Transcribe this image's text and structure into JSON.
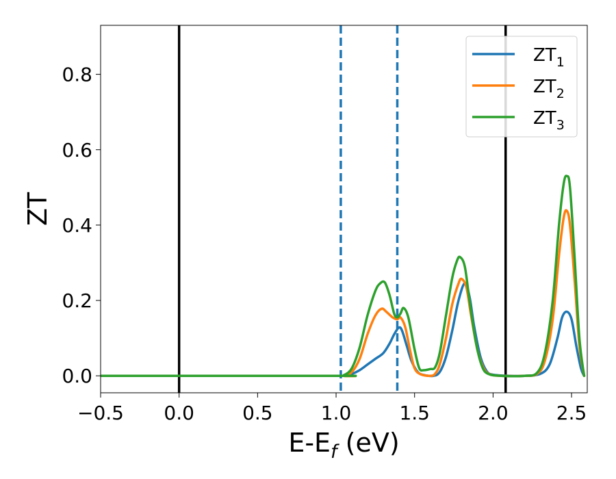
{
  "chart_data": {
    "type": "line",
    "xlabel": "E-E",
    "xlabel_sub": "f",
    "xlabel_unit": " (eV)",
    "ylabel": "ZT",
    "xlim": [
      -0.5,
      2.6
    ],
    "ylim": [
      -0.045,
      0.93
    ],
    "xticks": [
      -0.5,
      0.0,
      0.5,
      1.0,
      1.5,
      2.0,
      2.5
    ],
    "xtick_labels": [
      "−0.5",
      "0.0",
      "0.5",
      "1.0",
      "1.5",
      "2.0",
      "2.5"
    ],
    "yticks": [
      0.0,
      0.2,
      0.4,
      0.6,
      0.8
    ],
    "ytick_labels": [
      "0.0",
      "0.2",
      "0.4",
      "0.6",
      "0.8"
    ],
    "grid": false,
    "legend_position": "top-right",
    "vlines": [
      {
        "x": 0.0,
        "style": "solid",
        "color": "#000000"
      },
      {
        "x": 2.08,
        "style": "solid",
        "color": "#000000"
      },
      {
        "x": 1.03,
        "style": "dashed",
        "color": "#1f77b4"
      },
      {
        "x": 1.39,
        "style": "dashed",
        "color": "#1f77b4"
      }
    ],
    "series": [
      {
        "name": "ZT",
        "sub": "1",
        "color": "#1f77b4",
        "points": [
          [
            -0.5,
            0
          ],
          [
            1.0,
            0
          ],
          [
            1.05,
            0.0
          ],
          [
            1.1,
            0.005
          ],
          [
            1.15,
            0.015
          ],
          [
            1.2,
            0.03
          ],
          [
            1.25,
            0.045
          ],
          [
            1.3,
            0.06
          ],
          [
            1.34,
            0.085
          ],
          [
            1.37,
            0.11
          ],
          [
            1.4,
            0.128
          ],
          [
            1.42,
            0.12
          ],
          [
            1.45,
            0.08
          ],
          [
            1.48,
            0.04
          ],
          [
            1.52,
            0.01
          ],
          [
            1.56,
            0.002
          ],
          [
            1.62,
            0.0
          ],
          [
            1.66,
            0.01
          ],
          [
            1.7,
            0.05
          ],
          [
            1.74,
            0.12
          ],
          [
            1.78,
            0.2
          ],
          [
            1.82,
            0.246
          ],
          [
            1.85,
            0.21
          ],
          [
            1.88,
            0.13
          ],
          [
            1.92,
            0.05
          ],
          [
            1.96,
            0.012
          ],
          [
            2.0,
            0.003
          ],
          [
            2.1,
            0.0
          ],
          [
            2.2,
            0.0
          ],
          [
            2.3,
            0.005
          ],
          [
            2.36,
            0.03
          ],
          [
            2.41,
            0.1
          ],
          [
            2.44,
            0.155
          ],
          [
            2.47,
            0.17
          ],
          [
            2.5,
            0.15
          ],
          [
            2.53,
            0.08
          ],
          [
            2.56,
            0.02
          ],
          [
            2.58,
            0.0
          ]
        ]
      },
      {
        "name": "ZT",
        "sub": "2",
        "color": "#ff7f0e",
        "points": [
          [
            -0.5,
            0
          ],
          [
            1.0,
            0
          ],
          [
            1.05,
            0.0
          ],
          [
            1.1,
            0.01
          ],
          [
            1.15,
            0.045
          ],
          [
            1.2,
            0.11
          ],
          [
            1.25,
            0.16
          ],
          [
            1.29,
            0.178
          ],
          [
            1.32,
            0.17
          ],
          [
            1.36,
            0.155
          ],
          [
            1.39,
            0.15
          ],
          [
            1.41,
            0.155
          ],
          [
            1.44,
            0.13
          ],
          [
            1.47,
            0.07
          ],
          [
            1.5,
            0.02
          ],
          [
            1.54,
            0.004
          ],
          [
            1.6,
            0.0
          ],
          [
            1.63,
            0.005
          ],
          [
            1.66,
            0.03
          ],
          [
            1.7,
            0.1
          ],
          [
            1.74,
            0.19
          ],
          [
            1.78,
            0.245
          ],
          [
            1.8,
            0.257
          ],
          [
            1.83,
            0.235
          ],
          [
            1.86,
            0.16
          ],
          [
            1.9,
            0.07
          ],
          [
            1.94,
            0.02
          ],
          [
            1.98,
            0.004
          ],
          [
            2.05,
            0.0
          ],
          [
            2.2,
            0.0
          ],
          [
            2.28,
            0.005
          ],
          [
            2.33,
            0.04
          ],
          [
            2.38,
            0.15
          ],
          [
            2.42,
            0.32
          ],
          [
            2.45,
            0.42
          ],
          [
            2.47,
            0.438
          ],
          [
            2.49,
            0.4
          ],
          [
            2.52,
            0.25
          ],
          [
            2.55,
            0.08
          ],
          [
            2.58,
            0.0
          ]
        ]
      },
      {
        "name": "ZT",
        "sub": "3",
        "color": "#2ca02c",
        "points": [
          [
            -0.5,
            0
          ],
          [
            1.0,
            0
          ],
          [
            1.05,
            0.002
          ],
          [
            1.1,
            0.02
          ],
          [
            1.15,
            0.075
          ],
          [
            1.2,
            0.16
          ],
          [
            1.25,
            0.225
          ],
          [
            1.28,
            0.245
          ],
          [
            1.31,
            0.248
          ],
          [
            1.34,
            0.215
          ],
          [
            1.37,
            0.165
          ],
          [
            1.39,
            0.155
          ],
          [
            1.41,
            0.165
          ],
          [
            1.43,
            0.18
          ],
          [
            1.46,
            0.155
          ],
          [
            1.5,
            0.07
          ],
          [
            1.53,
            0.02
          ],
          [
            1.56,
            0.015
          ],
          [
            1.6,
            0.018
          ],
          [
            1.63,
            0.022
          ],
          [
            1.66,
            0.06
          ],
          [
            1.7,
            0.16
          ],
          [
            1.74,
            0.26
          ],
          [
            1.77,
            0.305
          ],
          [
            1.79,
            0.315
          ],
          [
            1.82,
            0.29
          ],
          [
            1.85,
            0.2
          ],
          [
            1.89,
            0.09
          ],
          [
            1.93,
            0.025
          ],
          [
            1.97,
            0.005
          ],
          [
            2.05,
            0.0
          ],
          [
            2.2,
            0.0
          ],
          [
            2.28,
            0.008
          ],
          [
            2.33,
            0.06
          ],
          [
            2.38,
            0.2
          ],
          [
            2.42,
            0.4
          ],
          [
            2.45,
            0.51
          ],
          [
            2.47,
            0.53
          ],
          [
            2.49,
            0.5
          ],
          [
            2.52,
            0.31
          ],
          [
            2.55,
            0.1
          ],
          [
            2.58,
            0.0
          ]
        ]
      }
    ]
  }
}
